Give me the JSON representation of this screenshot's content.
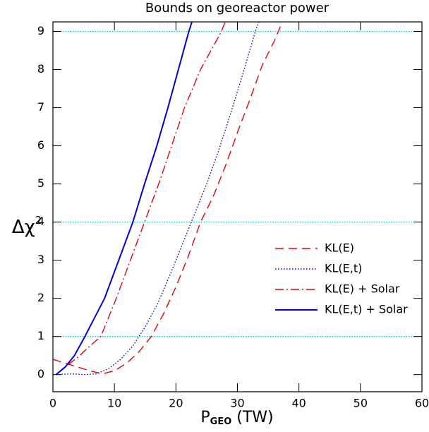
{
  "chart_data": {
    "type": "line",
    "title": "Bounds on georeactor power",
    "xlabel": [
      "P",
      "GEO",
      " (TW)"
    ],
    "ylabel": [
      "Δχ",
      "2"
    ],
    "xlim": [
      0,
      60
    ],
    "ylim": [
      -0.45,
      9.25
    ],
    "xticks": [
      0,
      10,
      20,
      30,
      40,
      50,
      60
    ],
    "yticks": [
      0,
      1,
      2,
      3,
      4,
      5,
      6,
      7,
      8,
      9
    ],
    "hlines": [
      1,
      4,
      9
    ],
    "hline_color": "#00cccc",
    "legend": "lower right",
    "series": [
      {
        "name": "KL(E)",
        "color": "#e8000b",
        "style": "dashed",
        "x": [
          0,
          2,
          4,
          6,
          8,
          10,
          12,
          14,
          16,
          18,
          20,
          22,
          24,
          26,
          28,
          30,
          32,
          34,
          36,
          37.3
        ],
        "values": [
          0.4,
          0.3,
          0.2,
          0.1,
          0.02,
          0.1,
          0.3,
          0.6,
          1.0,
          1.6,
          2.3,
          3.1,
          4.0,
          4.65,
          5.45,
          6.35,
          7.2,
          8.1,
          8.75,
          9.25
        ]
      },
      {
        "name": "KL(E,t)",
        "color": "#0000dd",
        "style": "dotted",
        "x": [
          0.5,
          3,
          5,
          7,
          9,
          11,
          13,
          15,
          17,
          19,
          21,
          23,
          25,
          27,
          29,
          31,
          33,
          33.5
        ],
        "values": [
          0,
          0.02,
          0,
          0.02,
          0.15,
          0.4,
          0.75,
          1.25,
          1.85,
          2.6,
          3.4,
          4.2,
          5.0,
          5.9,
          6.9,
          7.95,
          9.05,
          9.25
        ]
      },
      {
        "name": "KL(E) + Solar",
        "color": "#e8000b",
        "style": "dashdot",
        "x": [
          0.5,
          2,
          4,
          6,
          7.8,
          10.3,
          12.6,
          14.9,
          17.2,
          19.3,
          21.4,
          24,
          27.4,
          28
        ],
        "values": [
          0,
          0.2,
          0.45,
          0.75,
          1,
          2,
          3,
          4,
          5,
          6,
          7,
          8,
          9,
          9.25
        ]
      },
      {
        "name": "KL(E,t) + Solar",
        "color": "#0000dd",
        "style": "solid",
        "x": [
          0.5,
          2,
          3.5,
          5.2,
          8.4,
          10.7,
          13,
          14.9,
          16.9,
          18.7,
          20.4,
          22.1,
          22.6
        ],
        "values": [
          0,
          0.2,
          0.5,
          1,
          2,
          3,
          4,
          5,
          6,
          7,
          8,
          9,
          9.25
        ]
      }
    ]
  }
}
